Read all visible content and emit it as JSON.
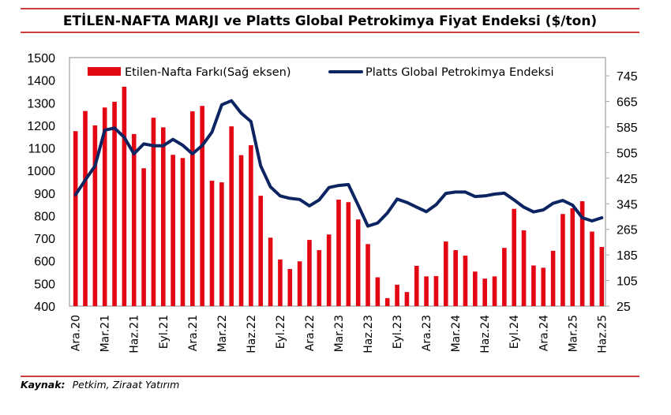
{
  "title": "ETİLEN-NAFTA MARJI ve Platts Global Petrokimya Fiyat Endeksi ($/ton)",
  "source_label": "Kaynak:",
  "source_text": "Petkim, Ziraat Yatırım",
  "colors": {
    "bars": "#e30613",
    "line": "#0c2461",
    "rule": "#c00000"
  },
  "chart_data": {
    "type": "bar+line",
    "title": "ETİLEN-NAFTA MARJI ve Platts Global Petrokimya Fiyat Endeksi ($/ton)",
    "grid": false,
    "legend": "top-inside",
    "x_tick_labels": [
      "Ara.20",
      "Mar.21",
      "Haz.21",
      "Eyl.21",
      "Ara.21",
      "Mar.22",
      "Haz.22",
      "Eyl.22",
      "Ara.22",
      "Mar.23",
      "Haz.23",
      "Eyl.23",
      "Ara.23",
      "Mar.24",
      "Haz.24",
      "Eyl.24",
      "Ara.24",
      "Mar.25",
      "Haz.25"
    ],
    "left_axis": {
      "ylim": [
        400,
        1500
      ],
      "ticks": [
        400,
        500,
        600,
        700,
        800,
        900,
        1000,
        1100,
        1200,
        1300,
        1400,
        1500
      ]
    },
    "right_axis": {
      "ylim": [
        25,
        802
      ],
      "ticks": [
        25,
        105,
        185,
        265,
        345,
        425,
        505,
        585,
        665,
        745
      ]
    },
    "series": [
      {
        "name": "Etilen-Nafta Farkı(Sağ eksen)",
        "type": "bar",
        "axis": "right",
        "values": [
          572,
          635,
          590,
          646,
          664,
          711,
          563,
          456,
          614,
          584,
          498,
          488,
          634,
          651,
          417,
          412,
          587,
          497,
          528,
          370,
          239,
          171,
          141,
          165,
          232,
          200,
          249,
          358,
          350,
          296,
          219,
          115,
          50,
          92,
          69,
          151,
          118,
          119,
          227,
          200,
          183,
          133,
          111,
          118,
          207,
          329,
          262,
          152,
          145,
          198,
          313,
          331,
          353,
          258,
          210
        ]
      },
      {
        "name": "Platts Global Petrokimya Endeksi",
        "type": "line",
        "axis": "left",
        "values": [
          893,
          958,
          1021,
          1179,
          1188,
          1147,
          1074,
          1118,
          1110,
          1110,
          1138,
          1112,
          1074,
          1111,
          1170,
          1291,
          1309,
          1254,
          1217,
          1021,
          928,
          888,
          877,
          872,
          844,
          870,
          925,
          934,
          938,
          847,
          754,
          768,
          812,
          874,
          859,
          838,
          818,
          849,
          899,
          905,
          905,
          885,
          888,
          896,
          900,
          870,
          838,
          817,
          826,
          855,
          868,
          847,
          791,
          777,
          791
        ]
      }
    ]
  }
}
